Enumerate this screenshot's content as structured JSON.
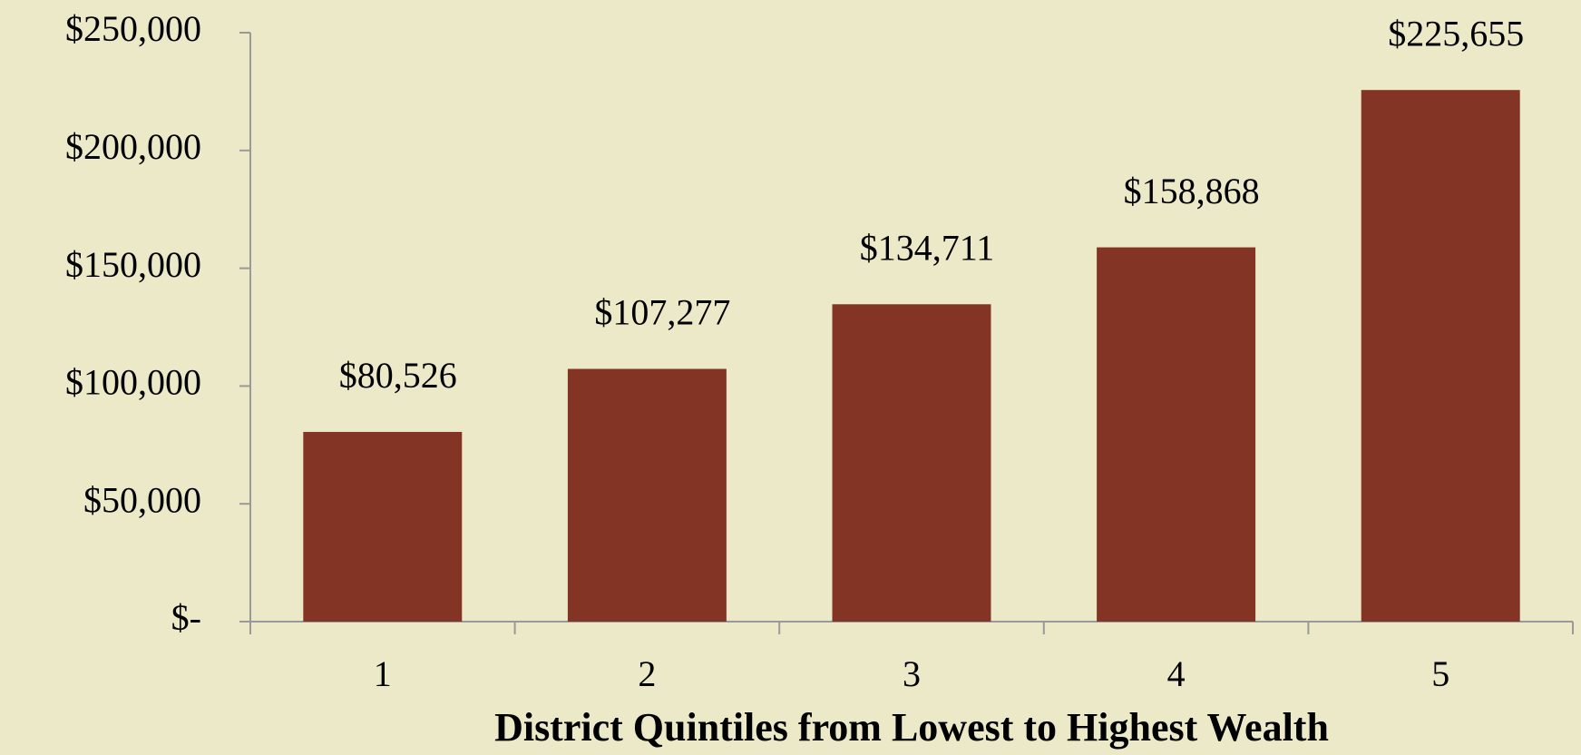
{
  "chart_data": {
    "type": "bar",
    "x_label": "District Quintiles from Lowest to Highest Wealth",
    "categories": [
      "1",
      "2",
      "3",
      "4",
      "5"
    ],
    "values": [
      80526,
      107277,
      134711,
      158868,
      225655
    ],
    "value_labels": [
      "$80,526",
      "$107,277",
      "$134,711",
      "$158,868",
      "$225,655"
    ],
    "color": "#843425",
    "ylim": [
      0,
      250000
    ],
    "yticks": [
      {
        "value": 0,
        "label": "$-"
      },
      {
        "value": 50000,
        "label": "$50,000"
      },
      {
        "value": 100000,
        "label": "$100,000"
      },
      {
        "value": 150000,
        "label": "$150,000"
      },
      {
        "value": 200000,
        "label": "$200,000"
      },
      {
        "value": 250000,
        "label": "$250,000"
      }
    ],
    "grid": false
  }
}
